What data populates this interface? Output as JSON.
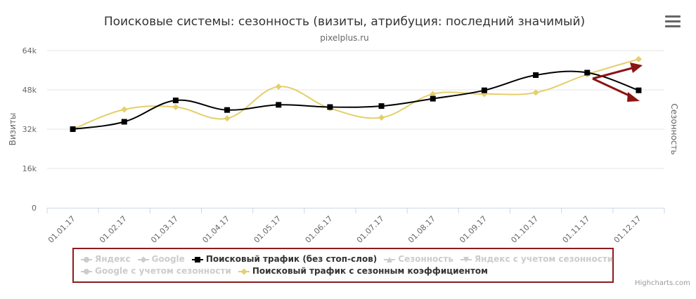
{
  "header": {
    "title": "Поисковые системы: сезонность (визиты, атрибуция: последний значимый)",
    "subtitle": "pixelplus.ru"
  },
  "menu": {
    "icon": "hamburger-menu-icon"
  },
  "credits": "Highcharts.com",
  "chart_data": {
    "type": "line",
    "categories": [
      "01.01.17",
      "01.02.17",
      "01.03.17",
      "01.04.17",
      "01.05.17",
      "01.06.17",
      "01.07.17",
      "01.08.17",
      "01.09.17",
      "01.10.17",
      "01.11.17",
      "01.12.17"
    ],
    "y_ticks": [
      "0",
      "16k",
      "32k",
      "48k",
      "64k"
    ],
    "ylabel": "Визиты",
    "ylabel_right": "Сезонность",
    "ylim": [
      0,
      64000
    ],
    "grid": true,
    "legend_position": "bottom",
    "series": [
      {
        "name": "Поисковый трафик (без стоп-слов)",
        "color": "#000000",
        "marker": "square",
        "values": [
          32000,
          35000,
          43700,
          39800,
          41900,
          41000,
          41400,
          44400,
          47800,
          54000,
          55000,
          47800
        ]
      },
      {
        "name": "Поисковый трафик с сезонным коэффициентом",
        "color": "#e4cf6b",
        "marker": "diamond",
        "values": [
          32000,
          40000,
          41000,
          36400,
          49300,
          40500,
          36700,
          46300,
          46300,
          46900,
          54300,
          60500
        ]
      }
    ],
    "legend": [
      {
        "label": "Яндекс",
        "active": false,
        "color": "#cccccc",
        "marker": "circle"
      },
      {
        "label": "Google",
        "active": false,
        "color": "#cccccc",
        "marker": "diamond"
      },
      {
        "label": "Поисковый трафик (без стоп-слов)",
        "active": true,
        "color": "#000000",
        "marker": "square"
      },
      {
        "label": "Сезонность",
        "active": false,
        "color": "#cccccc",
        "marker": "triangle"
      },
      {
        "label": "Яндекс с учетом сезонности",
        "active": false,
        "color": "#cccccc",
        "marker": "triangle-down"
      },
      {
        "label": "Google с учетом сезонности",
        "active": false,
        "color": "#cccccc",
        "marker": "circle"
      },
      {
        "label": "Поисковый трафик с сезонным коэффициентом",
        "active": true,
        "color": "#e4cf6b",
        "marker": "diamond"
      }
    ],
    "annotation_color": "#8b1414"
  }
}
